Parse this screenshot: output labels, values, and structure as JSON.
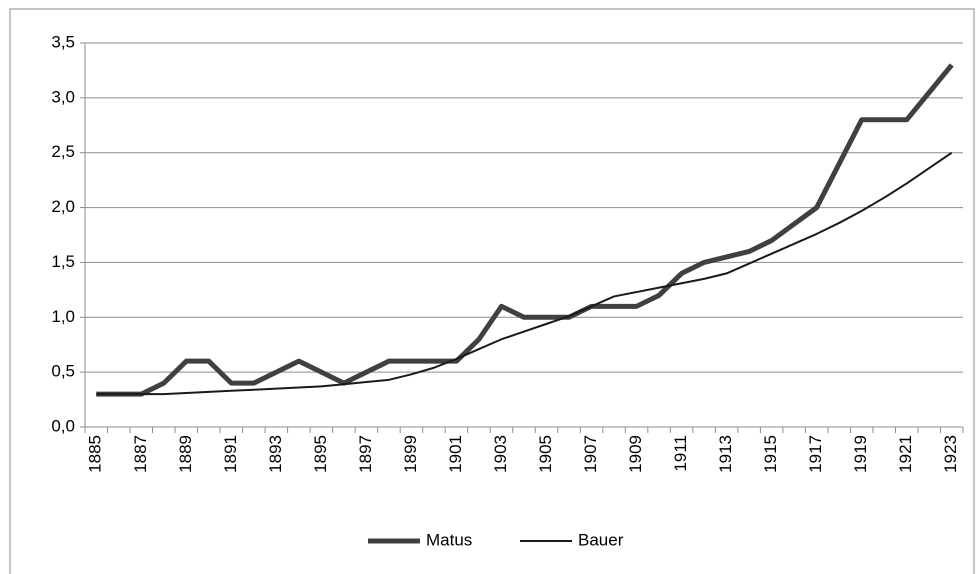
{
  "chart_data": {
    "type": "line",
    "categories": [
      "1885",
      null,
      "1887",
      null,
      "1889",
      null,
      "1891",
      null,
      "1893",
      null,
      "1895",
      null,
      "1897",
      null,
      "1899",
      null,
      "1901",
      null,
      "1903",
      null,
      "1905",
      null,
      "1907",
      null,
      "1909",
      null,
      "1911",
      null,
      "1913",
      null,
      "1915",
      null,
      "1917",
      null,
      "1919",
      null,
      "1921",
      null,
      "1923"
    ],
    "series": [
      {
        "name": "Matus",
        "color": "#404040",
        "values": [
          0.3,
          0.3,
          0.3,
          0.4,
          0.6,
          0.6,
          0.4,
          0.4,
          0.5,
          0.6,
          0.5,
          0.4,
          0.5,
          0.6,
          0.6,
          0.6,
          0.6,
          0.8,
          1.1,
          1.0,
          1.0,
          1.0,
          1.1,
          1.1,
          1.1,
          1.2,
          1.4,
          1.5,
          1.55,
          1.6,
          1.7,
          1.85,
          2.0,
          2.4,
          2.8,
          2.8,
          2.8,
          3.05,
          3.3
        ]
      },
      {
        "name": "Bauer",
        "color": "#1a1a1a",
        "values": [
          0.3,
          0.3,
          0.3,
          0.3,
          0.31,
          0.32,
          0.33,
          0.34,
          0.35,
          0.36,
          0.37,
          0.39,
          0.41,
          0.43,
          0.48,
          0.54,
          0.62,
          0.71,
          0.8,
          0.87,
          0.94,
          1.01,
          1.1,
          1.19,
          1.23,
          1.27,
          1.31,
          1.35,
          1.4,
          1.49,
          1.58,
          1.67,
          1.76,
          1.86,
          1.97,
          2.09,
          2.22,
          2.36,
          2.5
        ]
      }
    ],
    "ylim": [
      0,
      3.5
    ],
    "yticks": [
      {
        "value": 0,
        "label": "0,0"
      },
      {
        "value": 0.5,
        "label": "0,5"
      },
      {
        "value": 1,
        "label": "1,0"
      },
      {
        "value": 1.5,
        "label": "1,5"
      },
      {
        "value": 2,
        "label": "2,0"
      },
      {
        "value": 2.5,
        "label": "2,5"
      },
      {
        "value": 3,
        "label": "3,0"
      },
      {
        "value": 3.5,
        "label": "3,5"
      }
    ],
    "grid": true,
    "legend": "bottom"
  }
}
